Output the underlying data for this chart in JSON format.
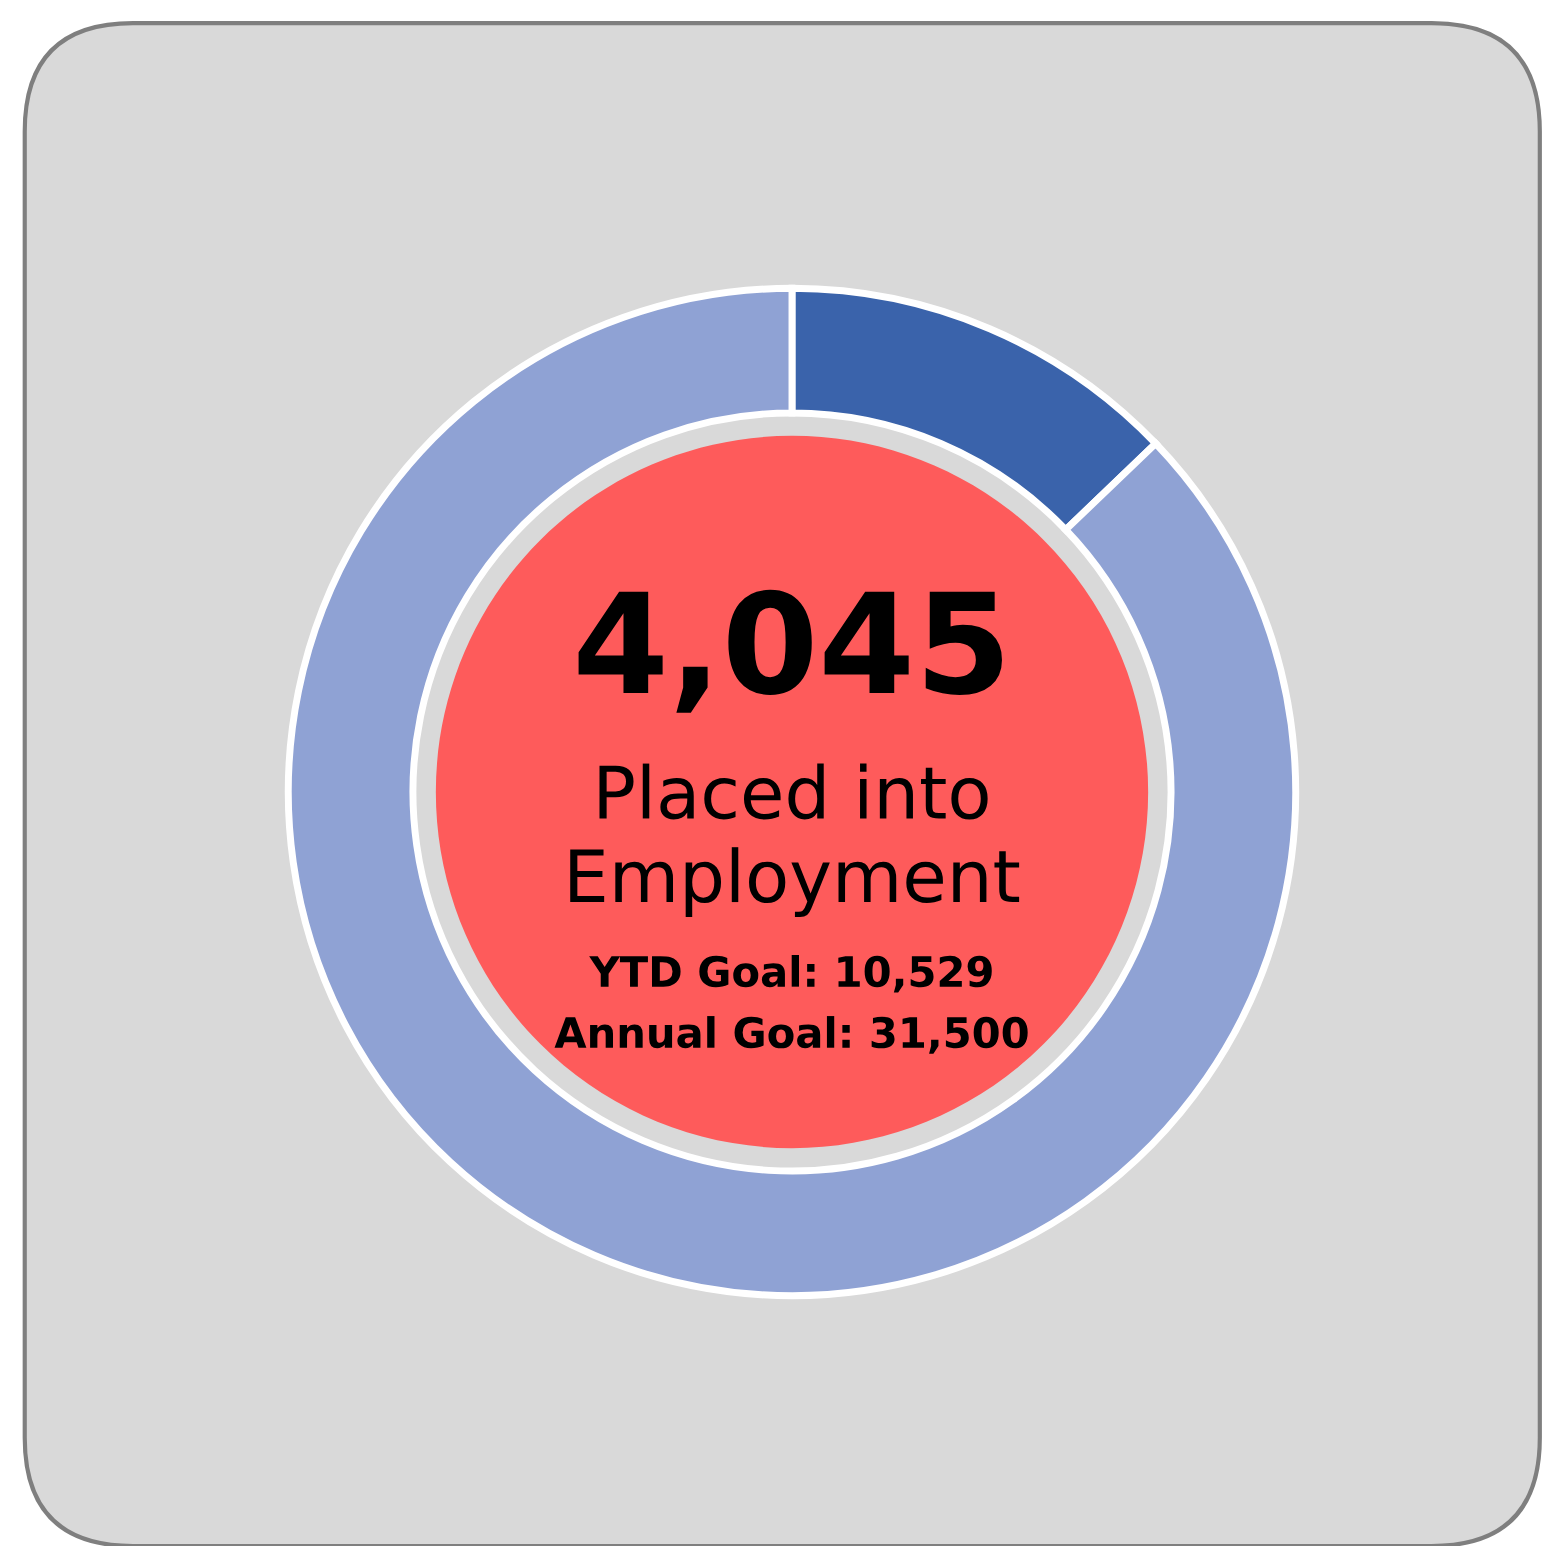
{
  "chart_data": {
    "type": "donut",
    "categories": [
      null,
      null
    ],
    "values": [
      12.84,
      87.16
    ],
    "colors": [
      "#3a63ab",
      "#8fa2d4"
    ],
    "annotations": [
      "4,045",
      "Placed into\nEmployment",
      "YTD Goal: 10,529",
      "Annual Goal: 31,500"
    ]
  }
}
